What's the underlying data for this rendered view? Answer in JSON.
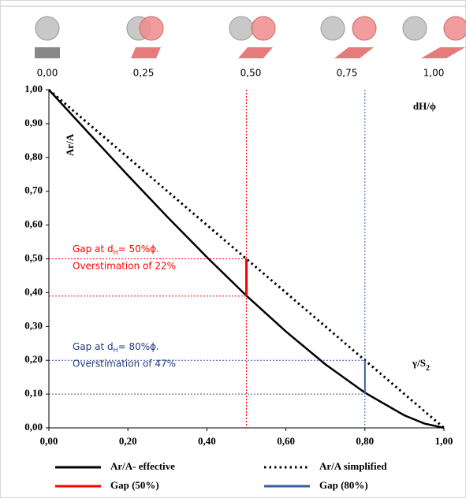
{
  "chart_data": {
    "type": "line",
    "overlap_labels": [
      "0,00",
      "0,25",
      "0,50",
      "0,75",
      "1,00"
    ],
    "xlim": [
      0,
      1
    ],
    "ylim": [
      0,
      1
    ],
    "xticks": [
      {
        "value": 0,
        "label": "0,00"
      },
      {
        "value": 0.2,
        "label": "0,20"
      },
      {
        "value": 0.4,
        "label": "0,40"
      },
      {
        "value": 0.6,
        "label": "0,60"
      },
      {
        "value": 0.8,
        "label": "0,80"
      },
      {
        "value": 1,
        "label": "1,00"
      }
    ],
    "yticks": [
      {
        "value": 0,
        "label": "0,00"
      },
      {
        "value": 0.1,
        "label": "0,10"
      },
      {
        "value": 0.2,
        "label": "0,20"
      },
      {
        "value": 0.3,
        "label": "0,30"
      },
      {
        "value": 0.4,
        "label": "0,40"
      },
      {
        "value": 0.5,
        "label": "0,50"
      },
      {
        "value": 0.6,
        "label": "0,60"
      },
      {
        "value": 0.7,
        "label": "0,70"
      },
      {
        "value": 0.8,
        "label": "0,80"
      },
      {
        "value": 0.9,
        "label": "0,90"
      },
      {
        "value": 1,
        "label": "1,00"
      }
    ],
    "y_label": "Ar/A",
    "x_label": "dH/ϕ",
    "curve_label": {
      "text": "γ/S",
      "sub": "2"
    },
    "legend": "bottom",
    "series": [
      {
        "name": "Ar/A- effective",
        "color": "#000000",
        "style": "solid",
        "x": [
          0,
          0.1,
          0.2,
          0.3,
          0.4,
          0.5,
          0.6,
          0.7,
          0.8,
          0.9,
          0.95,
          1
        ],
        "values": [
          1,
          0.873,
          0.747,
          0.624,
          0.505,
          0.391,
          0.285,
          0.188,
          0.104,
          0.037,
          0.013,
          0
        ]
      },
      {
        "name": "Ar/A simplified",
        "color": "#000000",
        "style": "dotted",
        "x": [
          0,
          1
        ],
        "values": [
          1,
          0
        ]
      },
      {
        "name": "Gap (50%)",
        "color": "#ff0000",
        "style": "gap",
        "x": [
          0.5,
          0.5
        ],
        "values": [
          0.39,
          0.5
        ]
      },
      {
        "name": "Gap (80%)",
        "color": "#3a5ba0",
        "style": "gap",
        "x": [
          0.8,
          0.8
        ],
        "values": [
          0.1,
          0.2
        ]
      }
    ],
    "annotations": [
      {
        "before": "Gap at d",
        "sub": "H",
        "after": "= 50%ϕ.",
        "line2": "Overstimation of 22%",
        "color": "#ff0000"
      },
      {
        "before": "Gap at d",
        "sub": "H",
        "after": "= 80%ϕ.",
        "line2": "Overstimation of 47%",
        "color": "#1f3a7a"
      }
    ]
  }
}
